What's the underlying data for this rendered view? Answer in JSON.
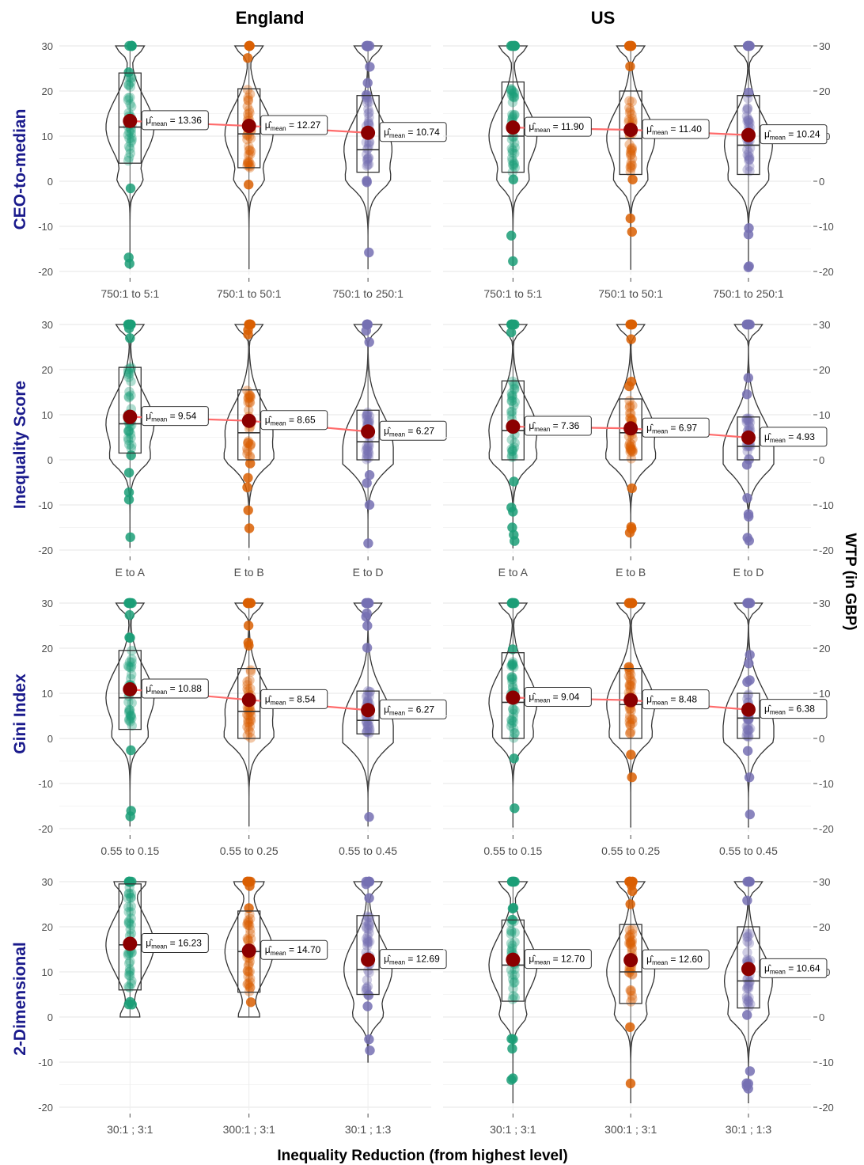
{
  "figure": {
    "xlabel": "Inequality Reduction (from highest level)",
    "ylabel": "WTP (in GBP)",
    "col_titles": [
      "England",
      "US"
    ],
    "row_titles": [
      "CEO-to-median",
      "Inequality Score",
      "Gini Index",
      "2-Dimensional"
    ],
    "colors": {
      "green": "#1b9e77",
      "orange": "#d95f02",
      "purple": "#7570b3",
      "mean_dot": "#8b0000",
      "mean_line": "#ff6b6b",
      "row_title": "#1a1a8c"
    },
    "mean_symbol": "μ̂",
    "mean_subscript": "mean"
  },
  "chart_data": [
    {
      "type": "violin",
      "row": "CEO-to-median",
      "country": "England",
      "categories": [
        "750:1 to 5:1",
        "750:1 to 50:1",
        "750:1 to 250:1"
      ],
      "means": [
        13.36,
        12.27,
        10.74
      ],
      "mean_labels": [
        "13.36",
        "12.27",
        "10.74"
      ],
      "medians": [
        12,
        10.5,
        7
      ],
      "q1": [
        4,
        3,
        2
      ],
      "q3": [
        24,
        20.5,
        19
      ],
      "ylim": [
        -20,
        30
      ],
      "yticks": [
        -20,
        -10,
        0,
        10,
        20,
        30
      ]
    },
    {
      "type": "violin",
      "row": "CEO-to-median",
      "country": "US",
      "categories": [
        "750:1 to 5:1",
        "750:1 to 50:1",
        "750:1 to 250:1"
      ],
      "means": [
        11.9,
        11.4,
        10.24
      ],
      "mean_labels": [
        "11.90",
        "11.40",
        "10.24"
      ],
      "medians": [
        10,
        9.5,
        8
      ],
      "q1": [
        2,
        1.5,
        1.5
      ],
      "q3": [
        22,
        20,
        19
      ],
      "ylim": [
        -20,
        30
      ],
      "yticks": [
        -20,
        -10,
        0,
        10,
        20,
        30
      ]
    },
    {
      "type": "violin",
      "row": "Inequality Score",
      "country": "England",
      "categories": [
        "E to A",
        "E to B",
        "E to D"
      ],
      "means": [
        9.54,
        8.65,
        6.27
      ],
      "mean_labels": [
        "9.54",
        "8.65",
        "6.27"
      ],
      "medians": [
        8,
        6,
        4
      ],
      "q1": [
        1.5,
        0,
        0
      ],
      "q3": [
        20.5,
        15.5,
        11
      ],
      "ylim": [
        -20,
        30
      ],
      "yticks": [
        -20,
        -10,
        0,
        10,
        20,
        30
      ]
    },
    {
      "type": "violin",
      "row": "Inequality Score",
      "country": "US",
      "categories": [
        "E to A",
        "E to B",
        "E to D"
      ],
      "means": [
        7.36,
        6.97,
        4.93
      ],
      "mean_labels": [
        "7.36",
        "6.97",
        "4.93"
      ],
      "medians": [
        6.5,
        6,
        3
      ],
      "q1": [
        0,
        0,
        0
      ],
      "q3": [
        17.5,
        13.5,
        9.5
      ],
      "ylim": [
        -20,
        30
      ],
      "yticks": [
        -20,
        -10,
        0,
        10,
        20,
        30
      ]
    },
    {
      "type": "violin",
      "row": "Gini Index",
      "country": "England",
      "categories": [
        "0.55 to 0.15",
        "0.55 to 0.25",
        "0.55 to 0.45"
      ],
      "means": [
        10.88,
        8.54,
        6.27
      ],
      "mean_labels": [
        "10.88",
        "8.54",
        "6.27"
      ],
      "medians": [
        9,
        6,
        4
      ],
      "q1": [
        2,
        0,
        1
      ],
      "q3": [
        19.5,
        15.5,
        10.5
      ],
      "ylim": [
        -20,
        30
      ],
      "yticks": [
        -20,
        -10,
        0,
        10,
        20,
        30
      ]
    },
    {
      "type": "violin",
      "row": "Gini Index",
      "country": "US",
      "categories": [
        "0.55 to 0.15",
        "0.55 to 0.25",
        "0.55 to 0.45"
      ],
      "means": [
        9.04,
        8.48,
        6.38
      ],
      "mean_labels": [
        "9.04",
        "8.48",
        "6.38"
      ],
      "medians": [
        8,
        7.5,
        4.5
      ],
      "q1": [
        0,
        0,
        0
      ],
      "q3": [
        19,
        15.5,
        10
      ],
      "ylim": [
        -20,
        30
      ],
      "yticks": [
        -20,
        -10,
        0,
        10,
        20,
        30
      ]
    },
    {
      "type": "violin",
      "row": "2-Dimensional",
      "country": "England",
      "categories": [
        "30:1 ; 3:1",
        "300:1 ; 3:1",
        "30:1 ; 1:3"
      ],
      "means": [
        16.23,
        14.7,
        12.69
      ],
      "mean_labels": [
        "16.23",
        "14.70",
        "12.69"
      ],
      "medians": [
        16,
        14.5,
        10.5
      ],
      "q1": [
        6,
        5.5,
        5
      ],
      "q3": [
        29.5,
        23.5,
        22.5
      ],
      "ylim": [
        -20,
        30
      ],
      "yticks": [
        -20,
        -10,
        0,
        10,
        20,
        30
      ]
    },
    {
      "type": "violin",
      "row": "2-Dimensional",
      "country": "US",
      "categories": [
        "30:1 ; 3:1",
        "300:1 ; 3:1",
        "30:1 ; 1:3"
      ],
      "means": [
        12.7,
        12.6,
        10.64
      ],
      "mean_labels": [
        "12.70",
        "12.60",
        "10.64"
      ],
      "medians": [
        11.5,
        10,
        8
      ],
      "q1": [
        3.5,
        3,
        2
      ],
      "q3": [
        21.5,
        20.5,
        20
      ],
      "ylim": [
        -20,
        30
      ],
      "yticks": [
        -20,
        -10,
        0,
        10,
        20,
        30
      ]
    }
  ]
}
